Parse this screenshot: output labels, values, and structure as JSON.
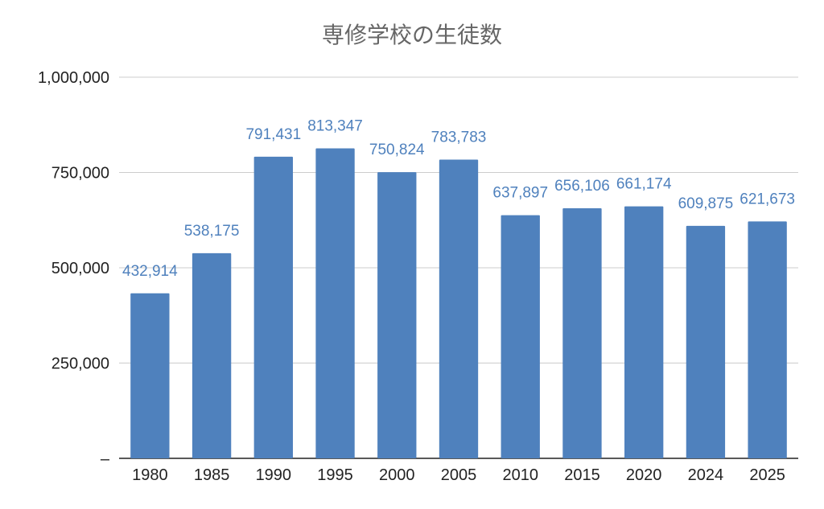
{
  "chart_data": {
    "type": "bar",
    "title": "専修学校の生徒数",
    "xlabel": "",
    "ylabel": "",
    "categories": [
      "1980",
      "1985",
      "1990",
      "1995",
      "2000",
      "2005",
      "2010",
      "2015",
      "2020",
      "2024",
      "2025"
    ],
    "values": [
      432914,
      538175,
      791431,
      813347,
      750824,
      783783,
      637897,
      656106,
      661174,
      609875,
      621673
    ],
    "value_labels": [
      "432,914",
      "538,175",
      "791,431",
      "813,347",
      "750,824",
      "783,783",
      "637,897",
      "656,106",
      "661,174",
      "609,875",
      "621,673"
    ],
    "ylim": [
      0,
      1000000
    ],
    "yticks": [
      0,
      250000,
      500000,
      750000,
      1000000
    ],
    "ytick_labels": [
      "–",
      "250,000",
      "500,000",
      "750,000",
      "1,000,000"
    ],
    "grid": true,
    "legend": "none",
    "colors": {
      "bar": "#4f81bd",
      "data_label": "#4f81bd",
      "grid": "#cccccc",
      "axis": "#222222",
      "title": "#666666"
    }
  }
}
